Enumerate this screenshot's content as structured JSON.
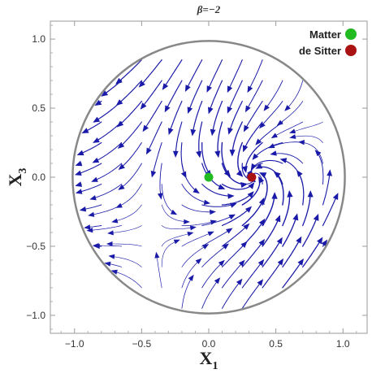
{
  "chart_data": {
    "type": "streamplot",
    "title": "β=−2",
    "xlabel": "X",
    "xlabel_sub": "1",
    "ylabel": "X",
    "ylabel_sub": "3",
    "xlim": [
      -1.18,
      1.18
    ],
    "ylim": [
      -1.13,
      1.13
    ],
    "x_ticks": [
      -1.0,
      -0.5,
      0.0,
      0.5,
      1.0
    ],
    "x_tick_labels": [
      "−1.0",
      "−0.5",
      "0.0",
      "0.5",
      "1.0"
    ],
    "y_ticks": [
      -1.0,
      -0.5,
      0.0,
      0.5,
      1.0
    ],
    "y_tick_labels": [
      "−1.0",
      "−0.5",
      "0.0",
      "0.5",
      "1.0"
    ],
    "boundary": {
      "shape": "circle",
      "center": [
        0,
        0
      ],
      "radius": 1.0,
      "color": "#888888"
    },
    "stream_color": "#1a1aa8",
    "critical_points": [
      {
        "name": "Matter",
        "x": 0.0,
        "y": 0.0,
        "color": "#22bb22"
      },
      {
        "name": "de Sitter",
        "x": 0.32,
        "y": 0.0,
        "color": "#aa1111"
      }
    ],
    "legend": {
      "position": "top-right",
      "entries": [
        {
          "label": "Matter",
          "color": "#22bb22"
        },
        {
          "label": "de Sitter",
          "color": "#aa1111"
        }
      ]
    }
  }
}
